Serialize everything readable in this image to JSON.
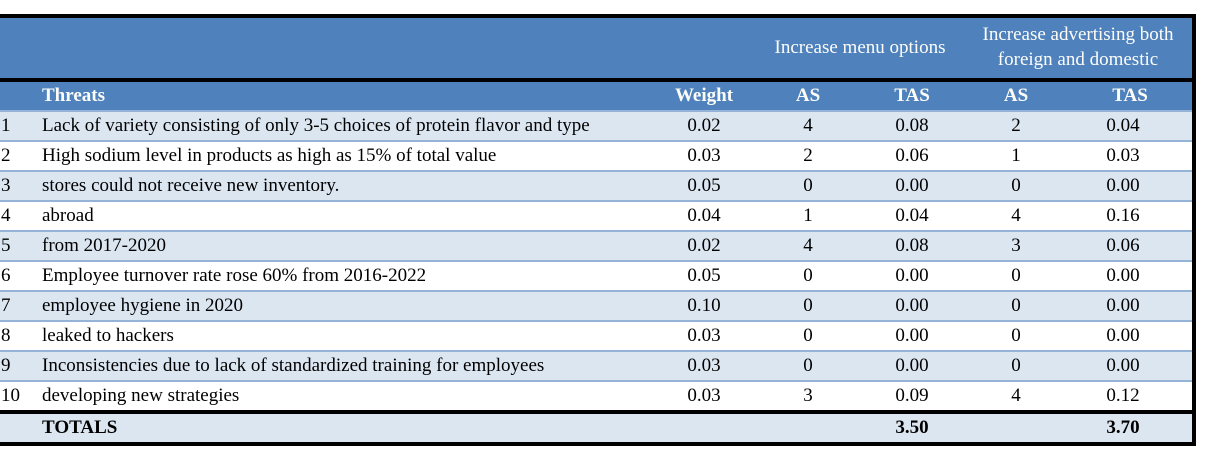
{
  "table": {
    "strategy_headers": [
      "Increase menu options",
      "Increase advertising both foreign and domestic"
    ],
    "column_headers": {
      "threats": "Threats",
      "weight": "Weight",
      "as1": "AS",
      "tas1": "TAS",
      "as2": "AS",
      "tas2": "TAS"
    },
    "rows": [
      {
        "num": "1",
        "threat": "Lack of variety consisting of only 3-5 choices of protein flavor and type",
        "weight": "0.02",
        "as1": "4",
        "tas1": "0.08",
        "as2": "2",
        "tas2": "0.04"
      },
      {
        "num": "2",
        "threat": "High sodium level in products as high as 15% of total value",
        "weight": "0.03",
        "as1": "2",
        "tas1": "0.06",
        "as2": "1",
        "tas2": "0.03"
      },
      {
        "num": "3",
        "threat": "stores could not receive new inventory.",
        "weight": "0.05",
        "as1": "0",
        "tas1": "0.00",
        "as2": "0",
        "tas2": "0.00"
      },
      {
        "num": "4",
        "threat": "abroad",
        "weight": "0.04",
        "as1": "1",
        "tas1": "0.04",
        "as2": "4",
        "tas2": "0.16"
      },
      {
        "num": "5",
        "threat": "from 2017-2020",
        "weight": "0.02",
        "as1": "4",
        "tas1": "0.08",
        "as2": "3",
        "tas2": "0.06"
      },
      {
        "num": "6",
        "threat": "Employee turnover rate rose 60% from 2016-2022",
        "weight": "0.05",
        "as1": "0",
        "tas1": "0.00",
        "as2": "0",
        "tas2": "0.00"
      },
      {
        "num": "7",
        "threat": "employee hygiene in 2020",
        "weight": "0.10",
        "as1": "0",
        "tas1": "0.00",
        "as2": "0",
        "tas2": "0.00"
      },
      {
        "num": "8",
        "threat": "leaked to hackers",
        "weight": "0.03",
        "as1": "0",
        "tas1": "0.00",
        "as2": "0",
        "tas2": "0.00"
      },
      {
        "num": "9",
        "threat": "Inconsistencies due to lack of standardized training for employees",
        "weight": "0.03",
        "as1": "0",
        "tas1": "0.00",
        "as2": "0",
        "tas2": "0.00"
      },
      {
        "num": "10",
        "threat": "developing new strategies",
        "weight": "0.03",
        "as1": "3",
        "tas1": "0.09",
        "as2": "4",
        "tas2": "0.12"
      }
    ],
    "totals": {
      "label": "TOTALS",
      "tas1": "3.50",
      "tas2": "3.70"
    }
  },
  "colors": {
    "header_blue": "#4f81bd",
    "row_alt_blue": "#dce6f1",
    "row_separator_blue": "#95b3d7",
    "border_black": "#000000",
    "header_text": "#ffffff"
  }
}
